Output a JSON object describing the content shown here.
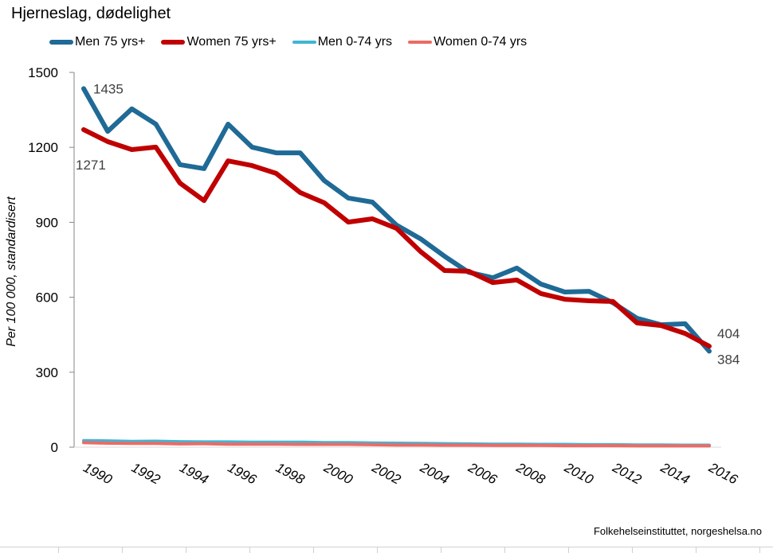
{
  "chart_data": {
    "type": "line",
    "title": "Hjerneslag, dødelighet",
    "xlabel": "",
    "ylabel": "Per 100 000, standardisert",
    "ylim": [
      0,
      1500
    ],
    "yticks": [
      0,
      300,
      600,
      900,
      1200,
      1500
    ],
    "xlim": [
      1990,
      2016
    ],
    "xticks": [
      1990,
      1992,
      1994,
      1996,
      1998,
      2000,
      2002,
      2004,
      2006,
      2008,
      2010,
      2012,
      2014,
      2016
    ],
    "grid": false,
    "legend_position": "top",
    "x": [
      1990,
      1991,
      1992,
      1993,
      1994,
      1995,
      1996,
      1997,
      1998,
      1999,
      2000,
      2001,
      2002,
      2003,
      2004,
      2005,
      2006,
      2007,
      2008,
      2009,
      2010,
      2011,
      2012,
      2013,
      2014,
      2015,
      2016
    ],
    "series": [
      {
        "name": "Men 75 yrs+",
        "color": "#1f6a96",
        "values": [
          1435,
          1264,
          1354,
          1293,
          1131,
          1115,
          1293,
          1201,
          1178,
          1178,
          1067,
          997,
          981,
          889,
          834,
          764,
          700,
          678,
          717,
          653,
          621,
          624,
          578,
          516,
          490,
          494,
          384
        ]
      },
      {
        "name": "Women 75 yrs+",
        "color": "#c00000",
        "values": [
          1271,
          1223,
          1191,
          1201,
          1057,
          987,
          1146,
          1127,
          1096,
          1019,
          978,
          901,
          914,
          876,
          783,
          707,
          704,
          659,
          669,
          615,
          592,
          586,
          583,
          497,
          487,
          455,
          404
        ]
      },
      {
        "name": "Men 0-74 yrs",
        "color": "#3fb6d3",
        "values": [
          26,
          25,
          23,
          24,
          22,
          21,
          21,
          20,
          20,
          20,
          18,
          18,
          17,
          16,
          15,
          14,
          13,
          12,
          12,
          11,
          11,
          10,
          10,
          9,
          9,
          8,
          8
        ]
      },
      {
        "name": "Women 0-74 yrs",
        "color": "#ec6b66",
        "values": [
          18,
          16,
          15,
          15,
          13,
          14,
          12,
          12,
          12,
          11,
          11,
          11,
          10,
          9,
          9,
          8,
          8,
          7,
          7,
          7,
          6,
          6,
          6,
          5,
          5,
          5,
          5
        ]
      }
    ],
    "annotations": [
      {
        "series": "Men 75 yrs+",
        "x": 1990,
        "text": "1435"
      },
      {
        "series": "Women 75 yrs+",
        "x": 1990,
        "text": "1271"
      },
      {
        "series": "Women 75 yrs+",
        "x": 2016,
        "text": "404"
      },
      {
        "series": "Men 75 yrs+",
        "x": 2016,
        "text": "384"
      }
    ]
  },
  "source": "Folkehelseinstituttet, norgeshelsa.no"
}
